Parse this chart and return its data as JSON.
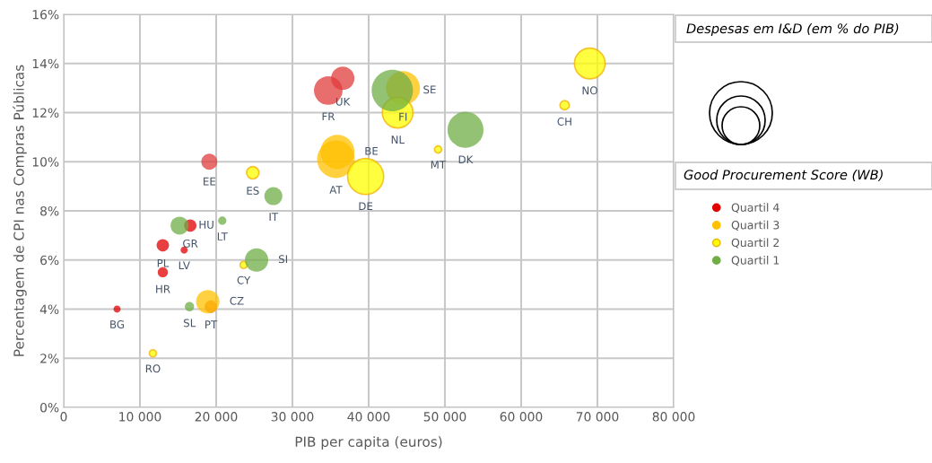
{
  "chart_data": {
    "type": "bubble",
    "xlabel": "PIB per capita (euros)",
    "ylabel": "Percentagem de CPI nas Compras Públicas",
    "legend_title": "Good Procurement Score (WB)",
    "annotations": [
      "Despesas em I&D (em % do PIB)"
    ],
    "xlim": [
      0,
      80000
    ],
    "xticks": [
      {
        "value": 0,
        "label": "0"
      },
      {
        "value": 10000,
        "label": "10 000"
      },
      {
        "value": 20000,
        "label": "20 000"
      },
      {
        "value": 30000,
        "label": "30 000"
      },
      {
        "value": 40000,
        "label": "40 000"
      },
      {
        "value": 50000,
        "label": "50 000"
      },
      {
        "value": 60000,
        "label": "60 000"
      },
      {
        "value": 70000,
        "label": "70 000"
      },
      {
        "value": 80000,
        "label": "80 000"
      }
    ],
    "ylim": [
      0,
      16
    ],
    "yticks": [
      {
        "value": 0,
        "label": "0%"
      },
      {
        "value": 2,
        "label": "2%"
      },
      {
        "value": 4,
        "label": "4%"
      },
      {
        "value": 6,
        "label": "6%"
      },
      {
        "value": 8,
        "label": "8%"
      },
      {
        "value": 10,
        "label": "10%"
      },
      {
        "value": 12,
        "label": "12%"
      },
      {
        "value": 14,
        "label": "14%"
      },
      {
        "value": 16,
        "label": "16%"
      }
    ],
    "grid": true,
    "legend": "right",
    "series": [
      {
        "name": "Quartil 4",
        "color": "#e00000",
        "x": [
          7000,
          13000,
          13000,
          15800,
          16600,
          19100,
          34700,
          36600,
          19300
        ],
        "values": [
          4.0,
          6.6,
          5.5,
          6.4,
          7.4,
          10.0,
          12.9,
          13.4,
          4.1
        ],
        "sizes": [
          0.03,
          0.09,
          0.06,
          0.03,
          0.09,
          0.15,
          0.48,
          0.32,
          0.09
        ],
        "colors": [
          "#e00000",
          "#e00000",
          "#e00000",
          "#e00000",
          "#e00000",
          "#e03c3c",
          "#e03c3c",
          "#e03c3c",
          "#e8600a"
        ],
        "value_labels": [
          "BG",
          "PL",
          "HR",
          "LV",
          "GR",
          "EE",
          "FR",
          "UK",
          "PT"
        ]
      },
      {
        "name": "Quartil 3",
        "color": "#ffc000",
        "x": [
          18900,
          35700,
          35900,
          44500
        ],
        "values": [
          4.3,
          10.1,
          10.4,
          13.0
        ],
        "sizes": [
          0.32,
          0.83,
          0.68,
          0.68
        ],
        "value_labels": [
          "CZ",
          "AT",
          "BE",
          "FI"
        ]
      },
      {
        "name": "Quartil 2",
        "color": "#ffff00",
        "x": [
          11700,
          24800,
          23600,
          39600,
          43800,
          49100,
          65700,
          69000
        ],
        "values": [
          2.2,
          9.55,
          5.8,
          9.4,
          12.0,
          10.5,
          12.3,
          14.0
        ],
        "sizes": [
          0.03,
          0.09,
          0.03,
          0.76,
          0.55,
          0.03,
          0.05,
          0.55
        ],
        "value_labels": [
          "RO",
          "ES",
          "CY",
          "DE",
          "NL",
          "MT",
          "CH",
          "NO"
        ]
      },
      {
        "name": "Quartil 1",
        "color": "#70ad47",
        "x": [
          15200,
          16500,
          20800,
          27500,
          25300,
          43100,
          52700
        ],
        "values": [
          7.4,
          4.1,
          7.6,
          8.6,
          6.0,
          12.9,
          11.3
        ],
        "sizes": [
          0.19,
          0.05,
          0.04,
          0.19,
          0.32,
          1,
          0.76
        ],
        "value_labels": [
          "HU",
          "SL",
          "LT",
          "IT",
          "SI",
          "SE",
          "DK"
        ]
      }
    ]
  }
}
